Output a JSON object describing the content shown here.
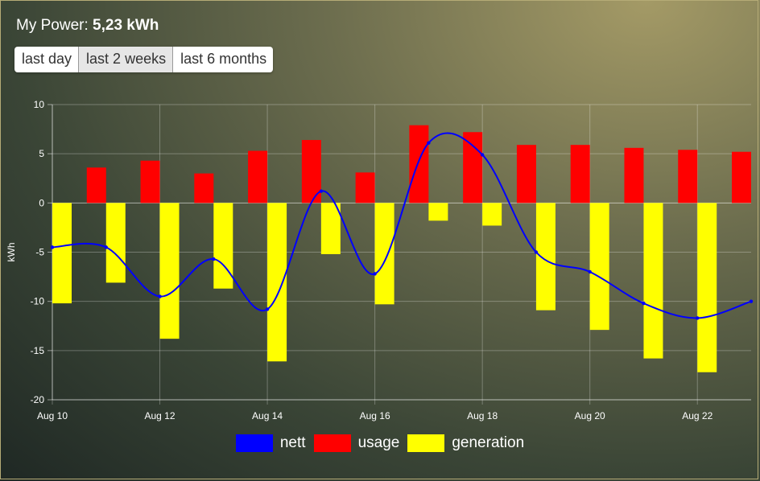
{
  "header": {
    "label": "My Power:",
    "value": "5,23 kWh"
  },
  "tabs": [
    {
      "label": "last day",
      "active": false
    },
    {
      "label": "last 2 weeks",
      "active": true
    },
    {
      "label": "last 6 months",
      "active": false
    }
  ],
  "legend": [
    {
      "label": "nett",
      "color": "#0000ff"
    },
    {
      "label": "usage",
      "color": "#ff0000"
    },
    {
      "label": "generation",
      "color": "#ffff00"
    }
  ],
  "chart_data": {
    "type": "bar",
    "ylabel": "kWh",
    "ylim": [
      -20,
      10
    ],
    "yticks": [
      10,
      5,
      0,
      -5,
      -10,
      -15,
      -20
    ],
    "grid": true,
    "legend_position": "bottom",
    "xticks": [
      "Aug 10",
      "Aug 12",
      "Aug 14",
      "Aug 16",
      "Aug 18",
      "Aug 20",
      "Aug 22"
    ],
    "categories": [
      "Aug 10",
      "Aug 11",
      "Aug 12",
      "Aug 13",
      "Aug 14",
      "Aug 15",
      "Aug 16",
      "Aug 17",
      "Aug 18",
      "Aug 19",
      "Aug 20",
      "Aug 21",
      "Aug 22",
      "Aug 23"
    ],
    "series": [
      {
        "name": "usage",
        "type": "bar",
        "color": "#ff0000",
        "values": [
          null,
          3.6,
          4.3,
          3.0,
          5.3,
          6.4,
          3.1,
          7.9,
          7.2,
          5.9,
          5.9,
          5.6,
          5.4,
          5.2
        ]
      },
      {
        "name": "generation",
        "type": "bar",
        "color": "#ffff00",
        "values": [
          -10.2,
          -8.1,
          -13.8,
          -8.7,
          -16.1,
          -5.2,
          -10.3,
          -1.8,
          -2.3,
          -10.9,
          -12.9,
          -15.8,
          -17.2,
          null
        ]
      },
      {
        "name": "nett",
        "type": "line",
        "color": "#0000ff",
        "values": [
          -4.5,
          -4.5,
          -9.5,
          -5.7,
          -10.8,
          1.2,
          -7.2,
          6.1,
          4.9,
          -5.0,
          -7.0,
          -10.2,
          -11.7,
          -10.0
        ]
      }
    ]
  }
}
